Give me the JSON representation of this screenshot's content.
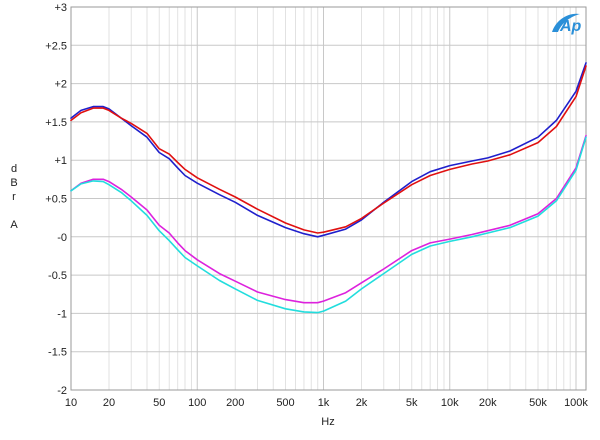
{
  "chart_data": {
    "type": "line",
    "x_scale": "log",
    "xlabel": "Hz",
    "ylabel": [
      "d",
      "B",
      "r",
      "",
      "A"
    ],
    "xlim": [
      10,
      120000
    ],
    "ylim": [
      -2,
      3
    ],
    "grid": true,
    "x_ticks": [
      {
        "value": 10,
        "label": "10"
      },
      {
        "value": 20,
        "label": "20"
      },
      {
        "value": 50,
        "label": "50"
      },
      {
        "value": 100,
        "label": "100"
      },
      {
        "value": 200,
        "label": "200"
      },
      {
        "value": 500,
        "label": "500"
      },
      {
        "value": 1000,
        "label": "1k"
      },
      {
        "value": 2000,
        "label": "2k"
      },
      {
        "value": 5000,
        "label": "5k"
      },
      {
        "value": 10000,
        "label": "10k"
      },
      {
        "value": 20000,
        "label": "20k"
      },
      {
        "value": 50000,
        "label": "50k"
      },
      {
        "value": 100000,
        "label": "100k"
      }
    ],
    "y_ticks": [
      {
        "value": 3,
        "label": "+3"
      },
      {
        "value": 2.5,
        "label": "+2.5"
      },
      {
        "value": 2,
        "label": "+2"
      },
      {
        "value": 1.5,
        "label": "+1.5"
      },
      {
        "value": 1,
        "label": "+1"
      },
      {
        "value": 0.5,
        "label": "+0.5"
      },
      {
        "value": 0,
        "label": "-0"
      },
      {
        "value": -0.5,
        "label": "-0.5"
      },
      {
        "value": -1,
        "label": "-1"
      },
      {
        "value": -1.5,
        "label": "-1.5"
      },
      {
        "value": -2,
        "label": "-2"
      }
    ],
    "logo": "Ap",
    "series": [
      {
        "color": "#1f1fcc",
        "x": [
          10,
          12,
          15,
          18,
          20,
          25,
          30,
          40,
          50,
          60,
          70,
          80,
          100,
          150,
          200,
          300,
          500,
          700,
          900,
          1000,
          1500,
          2000,
          3000,
          5000,
          7000,
          10000,
          15000,
          20000,
          30000,
          50000,
          70000,
          100000,
          120000
        ],
        "y": [
          1.55,
          1.65,
          1.7,
          1.7,
          1.67,
          1.55,
          1.45,
          1.3,
          1.1,
          1.02,
          0.9,
          0.8,
          0.7,
          0.55,
          0.45,
          0.28,
          0.12,
          0.04,
          0.0,
          0.02,
          0.1,
          0.22,
          0.45,
          0.72,
          0.85,
          0.93,
          0.99,
          1.03,
          1.12,
          1.3,
          1.52,
          1.9,
          2.27
        ]
      },
      {
        "color": "#e01010",
        "x": [
          10,
          12,
          15,
          18,
          20,
          25,
          30,
          40,
          50,
          60,
          70,
          80,
          100,
          150,
          200,
          300,
          500,
          700,
          900,
          1000,
          1500,
          2000,
          3000,
          5000,
          7000,
          10000,
          15000,
          20000,
          30000,
          50000,
          70000,
          100000,
          120000
        ],
        "y": [
          1.52,
          1.62,
          1.68,
          1.68,
          1.65,
          1.55,
          1.48,
          1.35,
          1.15,
          1.08,
          0.97,
          0.88,
          0.77,
          0.62,
          0.52,
          0.36,
          0.18,
          0.09,
          0.05,
          0.06,
          0.13,
          0.24,
          0.44,
          0.68,
          0.8,
          0.88,
          0.95,
          0.99,
          1.07,
          1.23,
          1.44,
          1.83,
          2.23
        ]
      },
      {
        "color": "#dd22dd",
        "x": [
          10,
          12,
          15,
          18,
          20,
          25,
          30,
          40,
          50,
          60,
          70,
          80,
          100,
          150,
          200,
          300,
          500,
          700,
          900,
          1000,
          1500,
          2000,
          3000,
          5000,
          7000,
          10000,
          15000,
          20000,
          30000,
          50000,
          70000,
          100000,
          120000
        ],
        "y": [
          0.6,
          0.7,
          0.75,
          0.75,
          0.72,
          0.62,
          0.52,
          0.35,
          0.15,
          0.05,
          -0.08,
          -0.18,
          -0.3,
          -0.48,
          -0.58,
          -0.72,
          -0.82,
          -0.86,
          -0.86,
          -0.84,
          -0.73,
          -0.6,
          -0.42,
          -0.18,
          -0.08,
          -0.03,
          0.03,
          0.08,
          0.15,
          0.3,
          0.5,
          0.9,
          1.32
        ]
      },
      {
        "color": "#22dddd",
        "x": [
          10,
          12,
          15,
          18,
          20,
          25,
          30,
          40,
          50,
          60,
          70,
          80,
          100,
          150,
          200,
          300,
          500,
          700,
          900,
          1000,
          1500,
          2000,
          3000,
          5000,
          7000,
          10000,
          15000,
          20000,
          30000,
          50000,
          70000,
          100000,
          120000
        ],
        "y": [
          0.6,
          0.69,
          0.73,
          0.72,
          0.68,
          0.58,
          0.47,
          0.28,
          0.08,
          -0.05,
          -0.17,
          -0.27,
          -0.38,
          -0.57,
          -0.68,
          -0.83,
          -0.94,
          -0.98,
          -0.99,
          -0.97,
          -0.84,
          -0.68,
          -0.48,
          -0.23,
          -0.12,
          -0.06,
          0.0,
          0.05,
          0.12,
          0.27,
          0.47,
          0.87,
          1.3
        ]
      }
    ]
  }
}
